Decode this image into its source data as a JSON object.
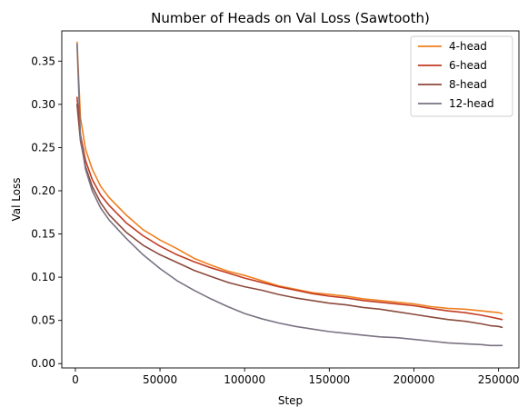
{
  "chart_data": {
    "type": "line",
    "title": "Number of Heads on Val Loss (Sawtooth)",
    "xlabel": "Step",
    "ylabel": "Val Loss",
    "xlim": [
      -8000,
      262000
    ],
    "ylim": [
      -0.005,
      0.385
    ],
    "xticks": [
      0,
      50000,
      100000,
      150000,
      200000,
      250000
    ],
    "xtick_labels": [
      "0",
      "50000",
      "100000",
      "150000",
      "200000",
      "250000"
    ],
    "yticks": [
      0.0,
      0.05,
      0.1,
      0.15,
      0.2,
      0.25,
      0.3,
      0.35
    ],
    "ytick_labels": [
      "0.00",
      "0.05",
      "0.10",
      "0.15",
      "0.20",
      "0.25",
      "0.30",
      "0.35"
    ],
    "grid": false,
    "legend_position": "top-right",
    "series": [
      {
        "name": "4-head",
        "color": "#f07f1e",
        "x": [
          1000,
          3000,
          6000,
          10000,
          15000,
          20000,
          30000,
          40000,
          50000,
          60000,
          70000,
          80000,
          90000,
          100000,
          110000,
          120000,
          130000,
          140000,
          150000,
          160000,
          170000,
          180000,
          190000,
          200000,
          210000,
          220000,
          230000,
          240000,
          245000,
          250000,
          252000
        ],
        "y": [
          0.372,
          0.285,
          0.248,
          0.225,
          0.205,
          0.192,
          0.172,
          0.155,
          0.143,
          0.133,
          0.122,
          0.114,
          0.107,
          0.102,
          0.096,
          0.09,
          0.086,
          0.082,
          0.08,
          0.078,
          0.075,
          0.073,
          0.071,
          0.069,
          0.066,
          0.064,
          0.063,
          0.061,
          0.06,
          0.059,
          0.058
        ]
      },
      {
        "name": "6-head",
        "color": "#c23b22",
        "x": [
          1000,
          3000,
          6000,
          10000,
          15000,
          20000,
          30000,
          40000,
          50000,
          60000,
          70000,
          80000,
          90000,
          100000,
          110000,
          120000,
          130000,
          140000,
          150000,
          160000,
          170000,
          180000,
          190000,
          200000,
          210000,
          220000,
          230000,
          240000,
          245000,
          250000,
          252000
        ],
        "y": [
          0.308,
          0.265,
          0.235,
          0.213,
          0.195,
          0.183,
          0.163,
          0.148,
          0.136,
          0.126,
          0.118,
          0.111,
          0.105,
          0.099,
          0.094,
          0.089,
          0.085,
          0.081,
          0.078,
          0.076,
          0.073,
          0.071,
          0.069,
          0.067,
          0.064,
          0.061,
          0.059,
          0.056,
          0.054,
          0.052,
          0.051
        ]
      },
      {
        "name": "8-head",
        "color": "#8b4a3c",
        "x": [
          1000,
          3000,
          6000,
          10000,
          15000,
          20000,
          30000,
          40000,
          50000,
          60000,
          70000,
          80000,
          90000,
          100000,
          110000,
          120000,
          130000,
          140000,
          150000,
          160000,
          170000,
          180000,
          190000,
          200000,
          210000,
          220000,
          230000,
          240000,
          245000,
          250000,
          252000
        ],
        "y": [
          0.3,
          0.258,
          0.228,
          0.205,
          0.186,
          0.172,
          0.152,
          0.137,
          0.126,
          0.117,
          0.108,
          0.101,
          0.094,
          0.089,
          0.085,
          0.08,
          0.076,
          0.073,
          0.07,
          0.068,
          0.065,
          0.063,
          0.06,
          0.057,
          0.054,
          0.051,
          0.049,
          0.046,
          0.044,
          0.043,
          0.042
        ]
      },
      {
        "name": "12-head",
        "color": "#7a7282",
        "x": [
          1000,
          3000,
          6000,
          10000,
          15000,
          20000,
          30000,
          40000,
          50000,
          60000,
          70000,
          80000,
          90000,
          100000,
          110000,
          120000,
          130000,
          140000,
          150000,
          160000,
          170000,
          180000,
          190000,
          200000,
          210000,
          220000,
          230000,
          240000,
          245000,
          250000,
          252000
        ],
        "y": [
          0.37,
          0.262,
          0.225,
          0.2,
          0.18,
          0.166,
          0.145,
          0.126,
          0.11,
          0.096,
          0.085,
          0.075,
          0.066,
          0.058,
          0.052,
          0.047,
          0.043,
          0.04,
          0.037,
          0.035,
          0.033,
          0.031,
          0.03,
          0.028,
          0.026,
          0.024,
          0.023,
          0.022,
          0.021,
          0.021,
          0.021
        ]
      }
    ]
  }
}
